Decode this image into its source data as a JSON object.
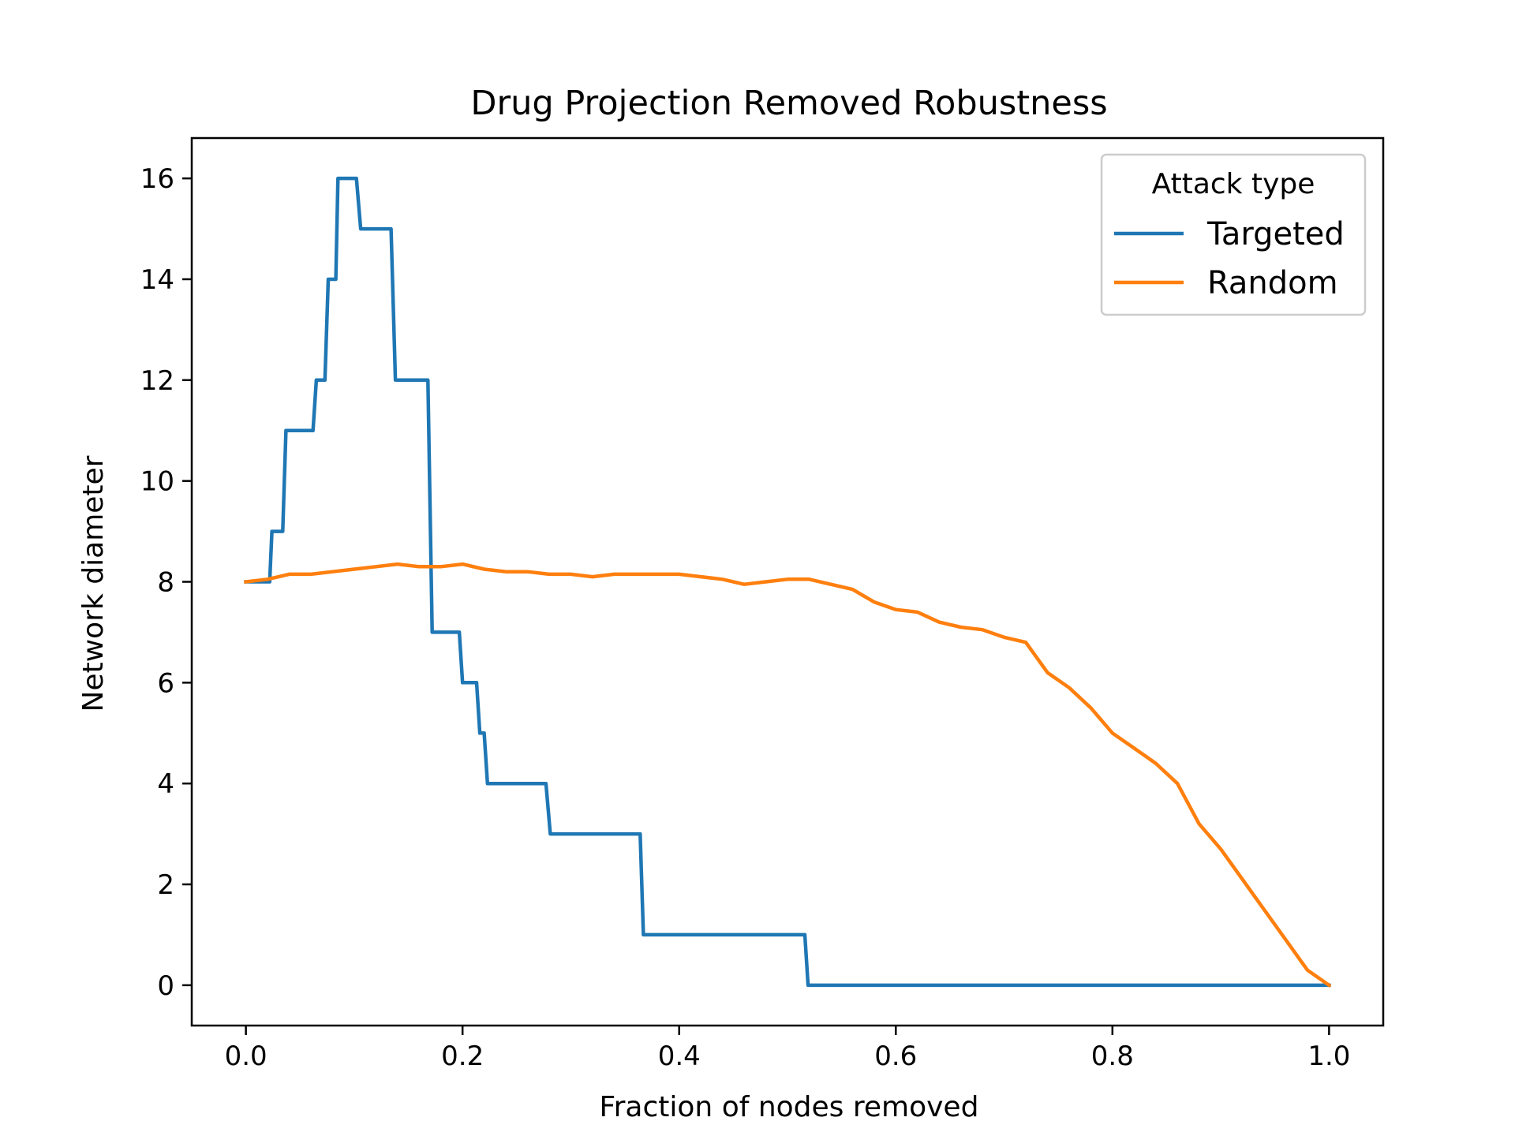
{
  "chart_data": {
    "type": "line",
    "title": "Drug Projection Removed Robustness",
    "xlabel": "Fraction of nodes removed",
    "ylabel": "Network diameter",
    "xlim": [
      -0.05,
      1.05
    ],
    "ylim": [
      -0.8,
      16.8
    ],
    "xticks": [
      "0.0",
      "0.2",
      "0.4",
      "0.6",
      "0.8",
      "1.0"
    ],
    "yticks": [
      "0",
      "2",
      "4",
      "6",
      "8",
      "10",
      "12",
      "14",
      "16"
    ],
    "grid": false,
    "legend": {
      "title": "Attack type",
      "placement": "top-right",
      "entries": [
        "Targeted",
        "Random"
      ]
    },
    "series": [
      {
        "name": "Targeted",
        "color": "#1f77b4",
        "x": [
          0,
          0.022,
          0.024,
          0.034,
          0.037,
          0.062,
          0.065,
          0.073,
          0.076,
          0.083,
          0.085,
          0.09,
          0.092,
          0.102,
          0.106,
          0.134,
          0.138,
          0.168,
          0.172,
          0.197,
          0.2,
          0.213,
          0.216,
          0.22,
          0.223,
          0.229,
          0.277,
          0.281,
          0.364,
          0.367,
          0.516,
          0.519,
          1.0
        ],
        "y": [
          8,
          8,
          9,
          9,
          11,
          11,
          12,
          12,
          14,
          14,
          16,
          16,
          16,
          16,
          15,
          15,
          12,
          12,
          7,
          7,
          6,
          6,
          5,
          5,
          4,
          4,
          4,
          3,
          3,
          1,
          1,
          0,
          0
        ]
      },
      {
        "name": "Random",
        "color": "#ff7f0e",
        "x": [
          0,
          0.02,
          0.04,
          0.06,
          0.08,
          0.1,
          0.12,
          0.14,
          0.16,
          0.18,
          0.2,
          0.22,
          0.24,
          0.26,
          0.28,
          0.3,
          0.32,
          0.34,
          0.36,
          0.38,
          0.4,
          0.42,
          0.44,
          0.46,
          0.48,
          0.5,
          0.52,
          0.54,
          0.56,
          0.58,
          0.6,
          0.62,
          0.64,
          0.66,
          0.68,
          0.7,
          0.72,
          0.74,
          0.76,
          0.78,
          0.8,
          0.82,
          0.84,
          0.86,
          0.88,
          0.9,
          0.92,
          0.94,
          0.96,
          0.98,
          1.0
        ],
        "y": [
          8.0,
          8.05,
          8.15,
          8.15,
          8.2,
          8.25,
          8.3,
          8.35,
          8.3,
          8.3,
          8.35,
          8.25,
          8.2,
          8.2,
          8.15,
          8.15,
          8.1,
          8.15,
          8.15,
          8.15,
          8.15,
          8.1,
          8.05,
          7.95,
          8.0,
          8.05,
          8.05,
          7.95,
          7.85,
          7.6,
          7.45,
          7.4,
          7.2,
          7.1,
          7.05,
          6.9,
          6.8,
          6.2,
          5.9,
          5.5,
          5.0,
          4.7,
          4.4,
          4.0,
          3.2,
          2.7,
          2.1,
          1.5,
          0.9,
          0.3,
          0.0
        ]
      }
    ]
  }
}
